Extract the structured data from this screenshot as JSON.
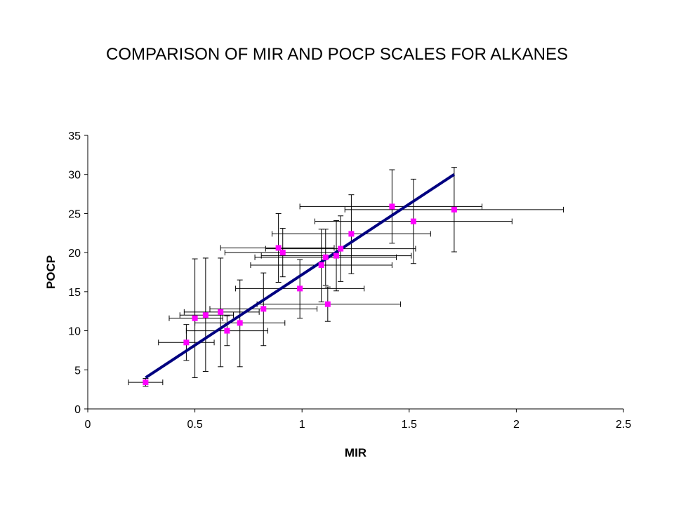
{
  "chart_data": {
    "type": "scatter",
    "title": "COMPARISON OF MIR AND POCP SCALES FOR ALKANES",
    "xlabel": "MIR",
    "ylabel": "POCP",
    "xlim": [
      0,
      2.5
    ],
    "ylim": [
      0,
      35
    ],
    "x_ticks": [
      "0",
      "0.5",
      "1",
      "1.5",
      "2",
      "2.5"
    ],
    "y_ticks": [
      "0",
      "5",
      "10",
      "15",
      "20",
      "25",
      "30",
      "35"
    ],
    "grid": false,
    "legend": "none",
    "marker_color": "#ff00ff",
    "line_color": "#000080",
    "errorbar_color": "#000000",
    "points": [
      {
        "x": 0.27,
        "y": 3.4,
        "xerr": [
          0.19,
          0.35
        ],
        "yerr": [
          2.9,
          3.9
        ]
      },
      {
        "x": 0.46,
        "y": 8.5,
        "xerr": [
          0.33,
          0.59
        ],
        "yerr": [
          6.2,
          10.8
        ]
      },
      {
        "x": 0.5,
        "y": 11.6,
        "xerr": [
          0.38,
          0.63
        ],
        "yerr": [
          4.0,
          19.2
        ]
      },
      {
        "x": 0.55,
        "y": 12.0,
        "xerr": [
          0.43,
          0.68
        ],
        "yerr": [
          4.8,
          19.3
        ]
      },
      {
        "x": 0.62,
        "y": 12.4,
        "xerr": [
          0.45,
          0.8
        ],
        "yerr": [
          5.4,
          19.3
        ]
      },
      {
        "x": 0.65,
        "y": 10.0,
        "xerr": [
          0.46,
          0.84
        ],
        "yerr": [
          8.1,
          11.9
        ]
      },
      {
        "x": 0.71,
        "y": 11.0,
        "xerr": [
          0.5,
          0.92
        ],
        "yerr": [
          5.4,
          16.5
        ]
      },
      {
        "x": 0.82,
        "y": 12.8,
        "xerr": [
          0.57,
          1.07
        ],
        "yerr": [
          8.1,
          17.4
        ]
      },
      {
        "x": 0.89,
        "y": 20.6,
        "xerr": [
          0.62,
          1.15
        ],
        "yerr": [
          16.2,
          25.0
        ]
      },
      {
        "x": 0.91,
        "y": 20.0,
        "xerr": [
          0.64,
          1.17
        ],
        "yerr": [
          16.9,
          23.1
        ]
      },
      {
        "x": 0.99,
        "y": 15.4,
        "xerr": [
          0.69,
          1.29
        ],
        "yerr": [
          11.6,
          19.1
        ]
      },
      {
        "x": 1.09,
        "y": 18.4,
        "xerr": [
          0.76,
          1.42
        ],
        "yerr": [
          13.7,
          23.0
        ]
      },
      {
        "x": 1.11,
        "y": 19.4,
        "xerr": [
          0.78,
          1.44
        ],
        "yerr": [
          15.8,
          23.0
        ]
      },
      {
        "x": 1.12,
        "y": 13.4,
        "xerr": [
          0.79,
          1.46
        ],
        "yerr": [
          11.2,
          15.6
        ]
      },
      {
        "x": 1.16,
        "y": 19.6,
        "xerr": [
          0.81,
          1.51
        ],
        "yerr": [
          15.1,
          24.1
        ]
      },
      {
        "x": 1.18,
        "y": 20.5,
        "xerr": [
          0.83,
          1.53
        ],
        "yerr": [
          16.3,
          24.7
        ]
      },
      {
        "x": 1.23,
        "y": 22.4,
        "xerr": [
          0.86,
          1.6
        ],
        "yerr": [
          17.3,
          27.4
        ]
      },
      {
        "x": 1.42,
        "y": 25.9,
        "xerr": [
          0.99,
          1.84
        ],
        "yerr": [
          21.2,
          30.6
        ]
      },
      {
        "x": 1.52,
        "y": 24.0,
        "xerr": [
          1.06,
          1.98
        ],
        "yerr": [
          18.6,
          29.4
        ]
      },
      {
        "x": 1.71,
        "y": 25.5,
        "xerr": [
          1.2,
          2.22
        ],
        "yerr": [
          20.1,
          30.9
        ]
      }
    ],
    "fit_line": {
      "x": [
        0.27,
        1.71
      ],
      "y": [
        4.0,
        30.0
      ]
    }
  }
}
